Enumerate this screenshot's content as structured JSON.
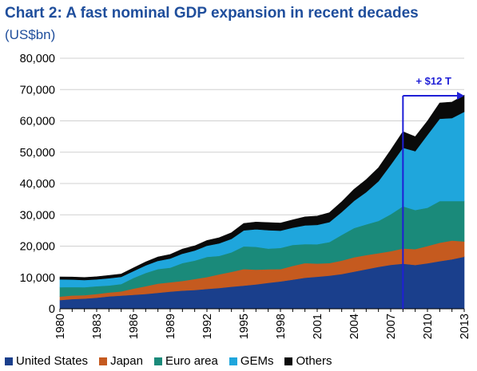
{
  "title": "Chart 2: A fast nominal GDP expansion in recent decades",
  "subtitle": "(US$bn)",
  "colors": {
    "United States": "#1a3f8c",
    "Japan": "#c55a1f",
    "Euro area": "#1a8a7a",
    "GEMs": "#1fa6dc",
    "Others": "#0a0a0a",
    "annotation": "#1f1fd6"
  },
  "chart_data": {
    "type": "area",
    "stacked": true,
    "x": [
      1980,
      1981,
      1982,
      1983,
      1984,
      1985,
      1986,
      1987,
      1988,
      1989,
      1990,
      1991,
      1992,
      1993,
      1994,
      1995,
      1996,
      1997,
      1998,
      1999,
      2000,
      2001,
      2002,
      2003,
      2004,
      2005,
      2006,
      2007,
      2008,
      2009,
      2010,
      2011,
      2012,
      2013
    ],
    "x_tick_labels": [
      "1980",
      "1983",
      "1986",
      "1989",
      "1992",
      "1995",
      "1998",
      "2001",
      "2004",
      "2007",
      "2010",
      "2013"
    ],
    "ylim": [
      0,
      80000
    ],
    "y_tick_labels": [
      "0",
      "10,000",
      "20,000",
      "30,000",
      "40,000",
      "50,000",
      "60,000",
      "70,000",
      "80,000"
    ],
    "series": [
      {
        "name": "United States",
        "values": [
          2800,
          3100,
          3250,
          3550,
          3950,
          4200,
          4450,
          4750,
          5100,
          5500,
          5800,
          6000,
          6350,
          6650,
          7050,
          7400,
          7800,
          8300,
          8750,
          9300,
          9900,
          10250,
          10600,
          11100,
          11850,
          12600,
          13400,
          14050,
          14400,
          14000,
          14550,
          15200,
          15800,
          16600
        ]
      },
      {
        "name": "Japan",
        "values": [
          1100,
          1150,
          1100,
          1200,
          1250,
          1350,
          2000,
          2450,
          2950,
          2950,
          3100,
          3500,
          3800,
          4350,
          4750,
          5300,
          4700,
          4300,
          3900,
          4400,
          4700,
          4200,
          4000,
          4300,
          4600,
          4550,
          4350,
          4350,
          4850,
          5050,
          5500,
          5900,
          6000,
          4900
        ]
      },
      {
        "name": "Euro area",
        "values": [
          3000,
          2700,
          2550,
          2450,
          2250,
          2350,
          3400,
          4250,
          4650,
          4700,
          5700,
          5900,
          6400,
          5900,
          6250,
          7250,
          7300,
          6600,
          6800,
          6700,
          6050,
          6150,
          6700,
          8200,
          9300,
          9800,
          10300,
          11800,
          13500,
          12500,
          12200,
          13300,
          12600,
          12900
        ]
      },
      {
        "name": "GEMs",
        "values": [
          2500,
          2400,
          2300,
          2200,
          2300,
          2300,
          2200,
          2400,
          2600,
          2900,
          3000,
          3200,
          3600,
          4000,
          4300,
          5100,
          5600,
          5900,
          5500,
          5500,
          6000,
          6200,
          6400,
          7300,
          8700,
          10300,
          12700,
          15800,
          18700,
          18800,
          23300,
          26300,
          26500,
          28500
        ]
      },
      {
        "name": "Others",
        "values": [
          800,
          800,
          800,
          850,
          900,
          900,
          1000,
          1100,
          1250,
          1300,
          1450,
          1500,
          1650,
          1800,
          1950,
          2200,
          2300,
          2450,
          2450,
          2500,
          2700,
          2800,
          3000,
          3300,
          3700,
          4000,
          4300,
          4700,
          5100,
          4600,
          4400,
          5000,
          5100,
          5300
        ]
      }
    ],
    "annotation": {
      "text": "+ $12 T",
      "x_start": 2008,
      "x_end": 2013
    }
  }
}
